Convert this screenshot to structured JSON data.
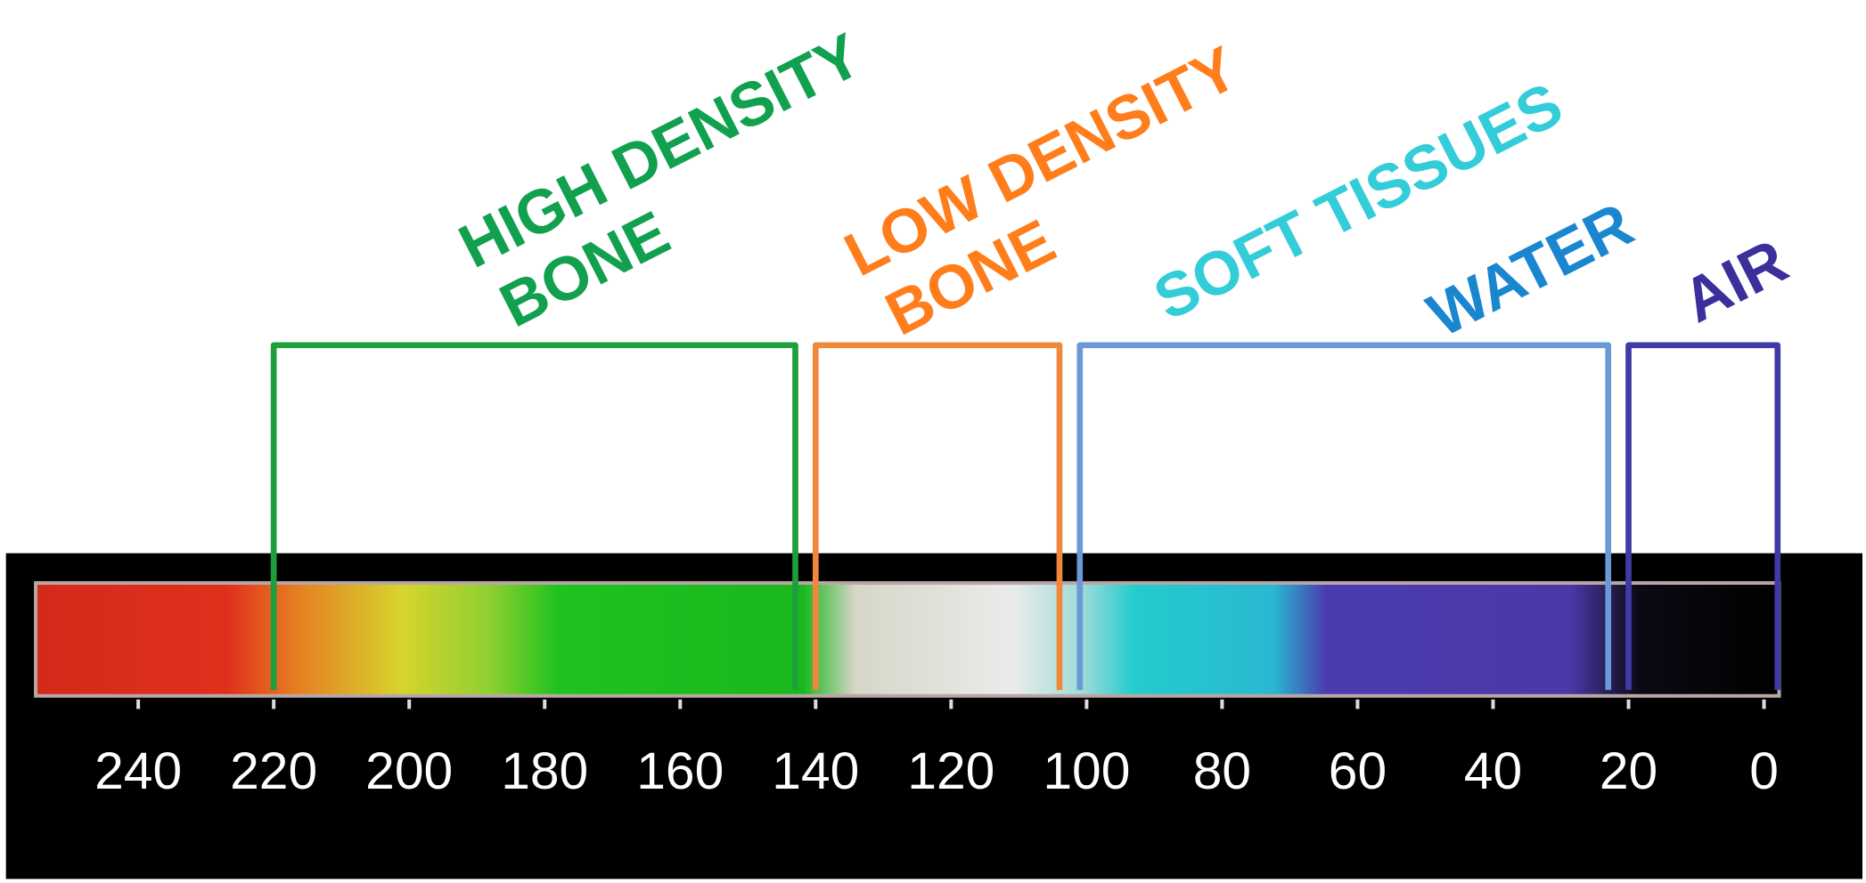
{
  "scale": {
    "xlim": [
      259,
      -14
    ],
    "ticks": [
      240,
      220,
      200,
      180,
      160,
      140,
      120,
      100,
      80,
      60,
      40,
      20,
      0
    ]
  },
  "ranges": [
    {
      "labels": [
        {
          "lines": [
            "HIGH DENSITY",
            "BONE"
          ],
          "color": "#10a04e"
        }
      ],
      "from": 220,
      "to": 143,
      "color": "#1f9e3c"
    },
    {
      "labels": [
        {
          "lines": [
            "LOW DENSITY",
            "BONE"
          ],
          "color": "#ff7d1a"
        }
      ],
      "from": 140,
      "to": 104,
      "color": "#f0873a"
    },
    {
      "labels": [
        {
          "lines": [
            "SOFT TISSUES"
          ],
          "color": "#33ccd9"
        },
        {
          "lines": [
            "WATER"
          ],
          "color": "#1a86d0"
        }
      ],
      "from": 101,
      "to": 23,
      "color": "#6a98d8"
    },
    {
      "labels": [
        {
          "lines": [
            "AIR"
          ],
          "color": "#3b2f9c"
        }
      ],
      "from": 20,
      "to": -2,
      "color": "#3f3aa6"
    }
  ]
}
